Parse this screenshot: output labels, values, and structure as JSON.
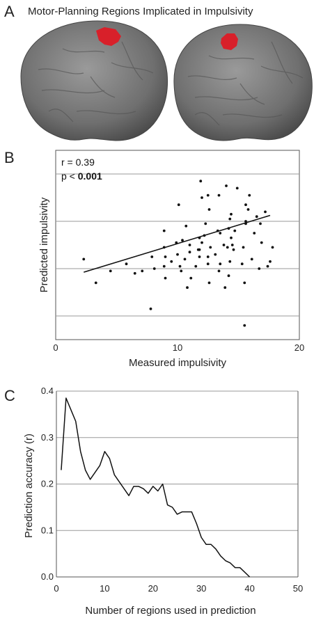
{
  "panel_a": {
    "letter": "A",
    "title": "Motor-Planning Regions Implicated in Impulsivity",
    "colors": {
      "brain": "#7a7a7a",
      "region": "#d8202a"
    }
  },
  "panel_b": {
    "letter": "B"
  },
  "panel_c": {
    "letter": "C"
  },
  "chart_data": [
    {
      "type": "scatter",
      "xlabel": "Measured impulsivity",
      "ylabel": "Predicted impulsivity",
      "xlim": [
        0,
        20
      ],
      "x_ticks": [
        "0",
        "10",
        "20"
      ],
      "y_ticks": [],
      "annotations": {
        "r_text": "r = 0.39",
        "p_prefix": "p < ",
        "p_value": "0.001"
      },
      "fit_line": {
        "x": [
          2.3,
          17.6
        ],
        "y": [
          2.85,
          5.25
        ]
      },
      "grid": "horizontal",
      "points": [
        {
          "x": 2.3,
          "y": 3.4
        },
        {
          "x": 3.3,
          "y": 2.4
        },
        {
          "x": 4.5,
          "y": 2.9
        },
        {
          "x": 5.8,
          "y": 3.2
        },
        {
          "x": 6.5,
          "y": 2.8
        },
        {
          "x": 7.1,
          "y": 2.9
        },
        {
          "x": 7.8,
          "y": 1.3
        },
        {
          "x": 7.9,
          "y": 3.5
        },
        {
          "x": 8.1,
          "y": 3.0
        },
        {
          "x": 8.9,
          "y": 4.6
        },
        {
          "x": 8.9,
          "y": 3.9
        },
        {
          "x": 8.9,
          "y": 3.1
        },
        {
          "x": 9.0,
          "y": 3.5
        },
        {
          "x": 9.0,
          "y": 2.6
        },
        {
          "x": 9.5,
          "y": 3.3
        },
        {
          "x": 9.9,
          "y": 4.1
        },
        {
          "x": 10.0,
          "y": 3.6
        },
        {
          "x": 10.1,
          "y": 5.7
        },
        {
          "x": 10.2,
          "y": 3.1
        },
        {
          "x": 10.3,
          "y": 2.9
        },
        {
          "x": 10.6,
          "y": 3.4
        },
        {
          "x": 10.7,
          "y": 4.8
        },
        {
          "x": 10.8,
          "y": 2.2
        },
        {
          "x": 11.0,
          "y": 3.7
        },
        {
          "x": 11.0,
          "y": 4.0
        },
        {
          "x": 11.1,
          "y": 2.6
        },
        {
          "x": 11.5,
          "y": 3.1
        },
        {
          "x": 11.8,
          "y": 3.8
        },
        {
          "x": 11.8,
          "y": 4.3
        },
        {
          "x": 11.8,
          "y": 3.5
        },
        {
          "x": 11.9,
          "y": 6.7
        },
        {
          "x": 12.0,
          "y": 6.0
        },
        {
          "x": 12.3,
          "y": 4.9
        },
        {
          "x": 12.5,
          "y": 3.2
        },
        {
          "x": 12.5,
          "y": 3.5
        },
        {
          "x": 12.5,
          "y": 6.1
        },
        {
          "x": 12.6,
          "y": 5.5
        },
        {
          "x": 12.6,
          "y": 2.4
        },
        {
          "x": 12.7,
          "y": 3.9
        },
        {
          "x": 13.1,
          "y": 3.6
        },
        {
          "x": 13.3,
          "y": 4.6
        },
        {
          "x": 13.4,
          "y": 2.9
        },
        {
          "x": 13.4,
          "y": 6.1
        },
        {
          "x": 13.5,
          "y": 4.5
        },
        {
          "x": 13.5,
          "y": 3.2
        },
        {
          "x": 13.9,
          "y": 2.2
        },
        {
          "x": 14.0,
          "y": 6.5
        },
        {
          "x": 14.1,
          "y": 3.9
        },
        {
          "x": 14.2,
          "y": 4.7
        },
        {
          "x": 14.3,
          "y": 5.1
        },
        {
          "x": 14.3,
          "y": 3.3
        },
        {
          "x": 14.4,
          "y": 5.3
        },
        {
          "x": 14.4,
          "y": 4.3
        },
        {
          "x": 14.5,
          "y": 4.0
        },
        {
          "x": 14.6,
          "y": 3.8
        },
        {
          "x": 14.9,
          "y": 6.4
        },
        {
          "x": 15.3,
          "y": 3.2
        },
        {
          "x": 15.5,
          "y": 2.4
        },
        {
          "x": 15.6,
          "y": 5.0
        },
        {
          "x": 15.6,
          "y": 5.7
        },
        {
          "x": 15.6,
          "y": 4.9
        },
        {
          "x": 15.9,
          "y": 6.1
        },
        {
          "x": 16.1,
          "y": 3.4
        },
        {
          "x": 16.3,
          "y": 4.5
        },
        {
          "x": 16.7,
          "y": 3.0
        },
        {
          "x": 16.8,
          "y": 4.9
        },
        {
          "x": 17.2,
          "y": 5.4
        },
        {
          "x": 17.4,
          "y": 3.1
        },
        {
          "x": 17.6,
          "y": 3.3
        },
        {
          "x": 17.8,
          "y": 3.9
        },
        {
          "x": 15.5,
          "y": 0.6
        },
        {
          "x": 11.7,
          "y": 3.8
        },
        {
          "x": 12.2,
          "y": 4.4
        },
        {
          "x": 14.7,
          "y": 4.6
        },
        {
          "x": 15.8,
          "y": 5.5
        },
        {
          "x": 16.5,
          "y": 5.2
        },
        {
          "x": 13.8,
          "y": 4.0
        },
        {
          "x": 12.0,
          "y": 4.1
        },
        {
          "x": 14.2,
          "y": 2.7
        },
        {
          "x": 10.4,
          "y": 4.2
        },
        {
          "x": 15.4,
          "y": 3.9
        },
        {
          "x": 16.9,
          "y": 4.1
        }
      ]
    },
    {
      "type": "line",
      "xlabel": "Number of regions used in prediction",
      "ylabel": "Prediction accuracy (r)",
      "xlim": [
        0,
        50
      ],
      "ylim": [
        0,
        0.4
      ],
      "x_ticks": [
        "0",
        "10",
        "20",
        "30",
        "40",
        "50"
      ],
      "y_ticks": [
        "0.0",
        "0.1",
        "0.2",
        "0.3",
        "0.4"
      ],
      "grid": "horizontal",
      "x": [
        1,
        2,
        3,
        4,
        5,
        6,
        7,
        8,
        9,
        10,
        11,
        12,
        13,
        14,
        15,
        16,
        17,
        18,
        19,
        20,
        21,
        22,
        23,
        24,
        25,
        26,
        27,
        28,
        29,
        30,
        31,
        32,
        33,
        34,
        35,
        36,
        37,
        38,
        39,
        40
      ],
      "values": [
        0.23,
        0.385,
        0.36,
        0.335,
        0.27,
        0.23,
        0.21,
        0.225,
        0.24,
        0.27,
        0.255,
        0.22,
        0.205,
        0.19,
        0.175,
        0.195,
        0.195,
        0.19,
        0.18,
        0.195,
        0.185,
        0.2,
        0.155,
        0.15,
        0.135,
        0.14,
        0.14,
        0.14,
        0.115,
        0.085,
        0.07,
        0.07,
        0.06,
        0.045,
        0.035,
        0.03,
        0.02,
        0.02,
        0.01,
        0.0
      ]
    }
  ]
}
